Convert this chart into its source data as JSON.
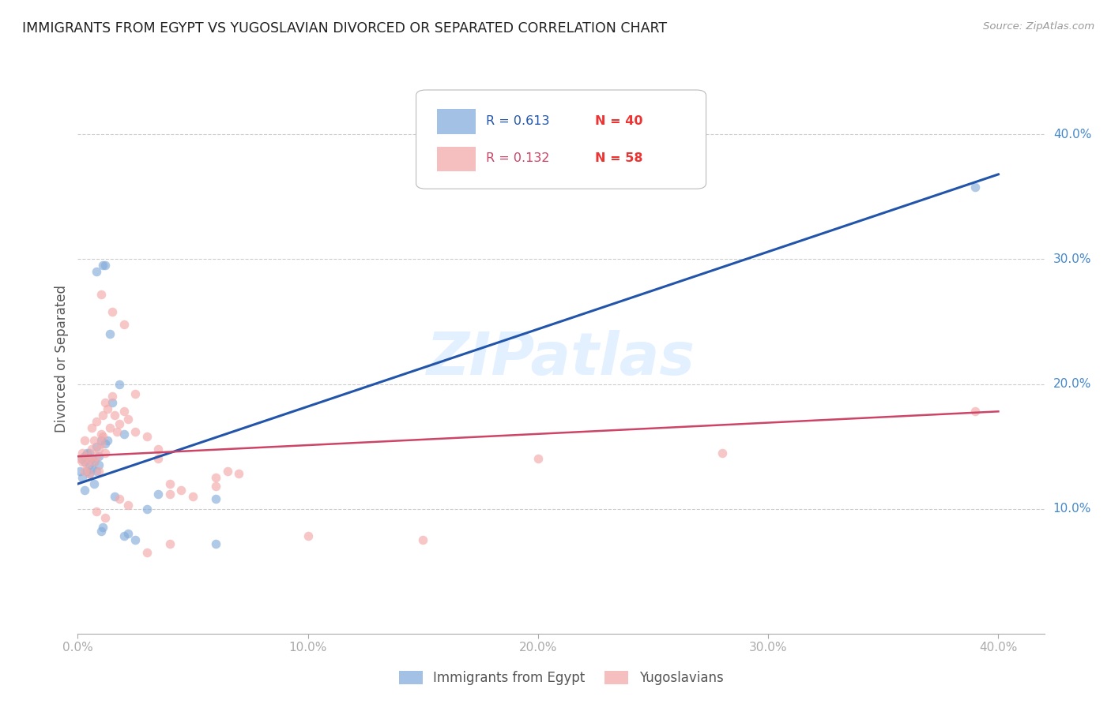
{
  "title": "IMMIGRANTS FROM EGYPT VS YUGOSLAVIAN DIVORCED OR SEPARATED CORRELATION CHART",
  "source": "Source: ZipAtlas.com",
  "ylabel": "Divorced or Separated",
  "watermark": "ZIPatlas",
  "legend_blue_R": "R = 0.613",
  "legend_blue_N": "N = 40",
  "legend_pink_R": "R = 0.132",
  "legend_pink_N": "N = 58",
  "legend_label_blue": "Immigrants from Egypt",
  "legend_label_pink": "Yugoslavians",
  "blue_color": "#85ADDB",
  "pink_color": "#F4AAAA",
  "blue_line_color": "#2255AA",
  "pink_line_color": "#CC4466",
  "background_color": "#FFFFFF",
  "grid_color": "#CCCCCC",
  "title_color": "#333333",
  "right_tick_color": "#4488CC",
  "blue_scatter_x": [
    0.001,
    0.002,
    0.002,
    0.003,
    0.003,
    0.003,
    0.004,
    0.004,
    0.005,
    0.005,
    0.005,
    0.006,
    0.006,
    0.007,
    0.007,
    0.008,
    0.008,
    0.009,
    0.009,
    0.01,
    0.01,
    0.011,
    0.011,
    0.012,
    0.013,
    0.014,
    0.015,
    0.016,
    0.018,
    0.02,
    0.02,
    0.022,
    0.025,
    0.03,
    0.035,
    0.06,
    0.06,
    0.012,
    0.008,
    0.39
  ],
  "blue_scatter_y": [
    0.13,
    0.14,
    0.125,
    0.138,
    0.142,
    0.115,
    0.13,
    0.145,
    0.135,
    0.128,
    0.145,
    0.14,
    0.132,
    0.138,
    0.12,
    0.13,
    0.15,
    0.142,
    0.135,
    0.155,
    0.082,
    0.085,
    0.295,
    0.295,
    0.155,
    0.24,
    0.185,
    0.11,
    0.2,
    0.16,
    0.078,
    0.08,
    0.075,
    0.1,
    0.112,
    0.072,
    0.108,
    0.152,
    0.29,
    0.358
  ],
  "pink_scatter_x": [
    0.001,
    0.002,
    0.002,
    0.003,
    0.003,
    0.004,
    0.004,
    0.005,
    0.005,
    0.006,
    0.006,
    0.007,
    0.007,
    0.008,
    0.008,
    0.009,
    0.009,
    0.01,
    0.01,
    0.011,
    0.011,
    0.012,
    0.012,
    0.013,
    0.014,
    0.015,
    0.016,
    0.017,
    0.018,
    0.02,
    0.022,
    0.025,
    0.03,
    0.035,
    0.04,
    0.045,
    0.05,
    0.06,
    0.065,
    0.07,
    0.01,
    0.015,
    0.02,
    0.025,
    0.035,
    0.04,
    0.06,
    0.1,
    0.15,
    0.2,
    0.008,
    0.012,
    0.018,
    0.022,
    0.03,
    0.04,
    0.39,
    0.28
  ],
  "pink_scatter_y": [
    0.14,
    0.138,
    0.145,
    0.13,
    0.155,
    0.142,
    0.135,
    0.14,
    0.128,
    0.148,
    0.165,
    0.138,
    0.155,
    0.142,
    0.17,
    0.148,
    0.13,
    0.16,
    0.152,
    0.175,
    0.158,
    0.145,
    0.185,
    0.18,
    0.165,
    0.19,
    0.175,
    0.162,
    0.168,
    0.178,
    0.172,
    0.162,
    0.158,
    0.148,
    0.12,
    0.115,
    0.11,
    0.125,
    0.13,
    0.128,
    0.272,
    0.258,
    0.248,
    0.192,
    0.14,
    0.112,
    0.118,
    0.078,
    0.075,
    0.14,
    0.098,
    0.093,
    0.108,
    0.103,
    0.065,
    0.072,
    0.178,
    0.145
  ],
  "blue_line_x": [
    0.0,
    0.4
  ],
  "blue_line_y": [
    0.12,
    0.368
  ],
  "pink_line_x": [
    0.0,
    0.4
  ],
  "pink_line_y": [
    0.142,
    0.178
  ],
  "xlim": [
    0.0,
    0.42
  ],
  "ylim": [
    0.0,
    0.44
  ],
  "xticks": [
    0.0,
    0.1,
    0.2,
    0.3,
    0.4
  ],
  "xtick_labels": [
    "0.0%",
    "10.0%",
    "20.0%",
    "30.0%",
    "40.0%"
  ],
  "ytick_positions": [
    0.1,
    0.2,
    0.3,
    0.4
  ],
  "ytick_labels": [
    "10.0%",
    "20.0%",
    "30.0%",
    "40.0%"
  ]
}
